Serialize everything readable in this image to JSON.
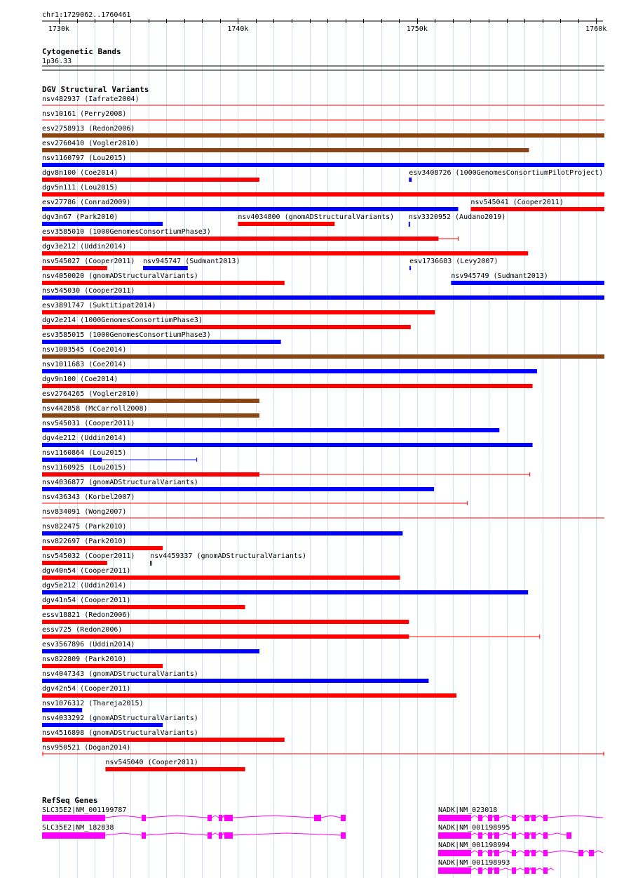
{
  "ruler": {
    "location": "chr1:1729062..1760461",
    "ticks": [
      "1730k",
      "1740k",
      "1750k",
      "1760k"
    ]
  },
  "cytoband": {
    "title": "Cytogenetic Bands",
    "band": "1p36.33"
  },
  "dgv": {
    "title": "DGV Structural Variants",
    "colors": {
      "red": "#ff0000",
      "blue": "#0000ff",
      "brown": "#8b4513"
    },
    "variants": [
      {
        "label": "nsv482937 (Iafrate2004)",
        "color": "red",
        "start": 1729062,
        "end": 1760461,
        "style": "line"
      },
      {
        "label": "nsv10161 (Perry2008)",
        "color": "red",
        "start": 1729062,
        "end": 1760461,
        "style": "line"
      },
      {
        "label": "esv2758913 (Redon2006)",
        "color": "brown",
        "start": 1729062,
        "end": 1760461,
        "style": "bar"
      },
      {
        "label": "esv2760410 (Vogler2010)",
        "color": "brown",
        "start": 1729062,
        "end": 1756250,
        "style": "bar"
      },
      {
        "label": "nsv1160797 (Lou2015)",
        "color": "blue",
        "start": 1729062,
        "end": 1760461,
        "style": "bar"
      },
      {
        "label": "dgv8n100 (Coe2014)",
        "color": "red",
        "start": 1729062,
        "end": 1741200,
        "style": "bar"
      },
      {
        "label": "esv3408726 (1000GenomesConsortiumPilotProject)",
        "color": "blue",
        "start": 1749550,
        "end": 1749700,
        "style": "bar"
      },
      {
        "label": "dgv5n111 (Lou2015)",
        "color": "red",
        "start": 1729062,
        "end": 1760461,
        "style": "bar"
      },
      {
        "label": "esv27786 (Conrad2009)",
        "color": "blue",
        "start": 1729062,
        "end": 1752300,
        "style": "bar"
      },
      {
        "label": "nsv545041 (Cooper2011)",
        "color": "red",
        "start": 1753000,
        "end": 1760461,
        "style": "bar"
      },
      {
        "label": "dgv3n67 (Park2010)",
        "color": "blue",
        "start": 1729062,
        "end": 1735800,
        "style": "bar"
      },
      {
        "label": "nsv4034800 (gnomADStructuralVariants)",
        "color": "red",
        "start": 1740000,
        "end": 1745400,
        "style": "bar"
      },
      {
        "label": "nsv3320952 (Audano2019)",
        "color": "blue",
        "start": 1749530,
        "end": 1749580,
        "style": "tick"
      },
      {
        "label": "esv3585010 (1000GenomesConsortiumPhase3)",
        "color": "red",
        "start": 1729062,
        "end": 1751200,
        "end2": 1752300,
        "style": "bar"
      },
      {
        "label": "dgv3e212 (Uddin2014)",
        "color": "red",
        "start": 1729062,
        "end": 1756200,
        "style": "bar"
      },
      {
        "label": "nsv545027 (Cooper2011)",
        "color": "red",
        "start": 1729062,
        "end": 1732700,
        "style": "bar"
      },
      {
        "label": "nsv945747 (Sudmant2013)",
        "color": "blue",
        "start": 1734700,
        "end": 1737200,
        "style": "bar"
      },
      {
        "label": "esv1736683 (Levy2007)",
        "color": "blue",
        "start": 1749580,
        "end": 1749650,
        "style": "bar"
      },
      {
        "label": "nsv4050020 (gnomADStructuralVariants)",
        "color": "red",
        "start": 1729062,
        "end": 1742600,
        "style": "bar"
      },
      {
        "label": "nsv945749 (Sudmant2013)",
        "color": "blue",
        "start": 1751900,
        "end": 1760461,
        "style": "bar"
      },
      {
        "label": "nsv545030 (Cooper2011)",
        "color": "blue",
        "start": 1729062,
        "end": 1760461,
        "style": "bar"
      },
      {
        "label": "esv3891747 (Suktitipat2014)",
        "color": "red",
        "start": 1729062,
        "end": 1751000,
        "style": "bar"
      },
      {
        "label": "dgv2e214 (1000GenomesConsortiumPhase3)",
        "color": "red",
        "start": 1729062,
        "end": 1749650,
        "style": "bar"
      },
      {
        "label": "esv3585015 (1000GenomesConsortiumPhase3)",
        "color": "blue",
        "start": 1729062,
        "end": 1742400,
        "style": "bar"
      },
      {
        "label": "nsv1003545 (Coe2014)",
        "color": "brown",
        "start": 1729062,
        "end": 1760461,
        "style": "bar"
      },
      {
        "label": "nsv1011683 (Coe2014)",
        "color": "blue",
        "start": 1729062,
        "end": 1756700,
        "style": "bar"
      },
      {
        "label": "dgv9n100 (Coe2014)",
        "color": "red",
        "start": 1729062,
        "end": 1756450,
        "style": "bar"
      },
      {
        "label": "esv2764265 (Vogler2010)",
        "color": "brown",
        "start": 1729062,
        "end": 1741200,
        "style": "bar"
      },
      {
        "label": "nsv442858 (McCarroll2008)",
        "color": "brown",
        "start": 1729062,
        "end": 1741200,
        "style": "bar"
      },
      {
        "label": "nsv545031 (Cooper2011)",
        "color": "blue",
        "start": 1729062,
        "end": 1754600,
        "style": "bar"
      },
      {
        "label": "dgv4e212 (Uddin2014)",
        "color": "blue",
        "start": 1729062,
        "end": 1756450,
        "style": "bar"
      },
      {
        "label": "nsv1160864 (Lou2015)",
        "color": "blue",
        "start": 1729062,
        "end": 1732400,
        "end2": 1737700,
        "style": "bar"
      },
      {
        "label": "nsv1160925 (Lou2015)",
        "color": "red",
        "start": 1729062,
        "end": 1741200,
        "end2": 1756300,
        "style": "bar"
      },
      {
        "label": "nsv4036877 (gnomADStructuralVariants)",
        "color": "blue",
        "start": 1729062,
        "end": 1750950,
        "style": "bar"
      },
      {
        "label": "nsv436343 (Korbel2007)",
        "color": "red",
        "start": 1729062,
        "end": 1752800,
        "style": "line"
      },
      {
        "label": "nsv834091 (Wong2007)",
        "color": "red",
        "start": 1729062,
        "end": 1760461,
        "style": "line"
      },
      {
        "label": "nsv822475 (Park2010)",
        "color": "blue",
        "start": 1729062,
        "end": 1749200,
        "style": "bar"
      },
      {
        "label": "nsv822697 (Park2010)",
        "color": "red",
        "start": 1729062,
        "end": 1735800,
        "style": "bar"
      },
      {
        "label": "nsv545032 (Cooper2011)",
        "color": "red",
        "start": 1729062,
        "end": 1732700,
        "style": "bar"
      },
      {
        "label": "nsv4459337 (gnomADStructuralVariants)",
        "color": "black",
        "start": 1735100,
        "end": 1735150,
        "style": "tick"
      },
      {
        "label": "dgv40n54 (Cooper2011)",
        "color": "red",
        "start": 1729062,
        "end": 1749050,
        "style": "bar"
      },
      {
        "label": "dgv5e212 (Uddin2014)",
        "color": "blue",
        "start": 1729062,
        "end": 1756200,
        "style": "bar"
      },
      {
        "label": "dgv41n54 (Cooper2011)",
        "color": "red",
        "start": 1729062,
        "end": 1740400,
        "style": "bar"
      },
      {
        "label": "essv18821 (Redon2006)",
        "color": "red",
        "start": 1729062,
        "end": 1749550,
        "style": "bar"
      },
      {
        "label": "essv725 (Redon2006)",
        "color": "red",
        "start": 1729062,
        "end": 1749550,
        "end2": 1756850,
        "style": "bar"
      },
      {
        "label": "esv3567896 (Uddin2014)",
        "color": "blue",
        "start": 1729062,
        "end": 1741200,
        "style": "bar"
      },
      {
        "label": "nsv822809 (Park2010)",
        "color": "red",
        "start": 1729062,
        "end": 1735800,
        "style": "bar"
      },
      {
        "label": "nsv4047343 (gnomADStructuralVariants)",
        "color": "blue",
        "start": 1729062,
        "end": 1750650,
        "style": "bar"
      },
      {
        "label": "dgv42n54 (Cooper2011)",
        "color": "red",
        "start": 1729062,
        "end": 1752200,
        "style": "bar"
      },
      {
        "label": "nsv1076312 (Thareja2015)",
        "color": "blue",
        "start": 1729062,
        "end": 1731300,
        "style": "bar"
      },
      {
        "label": "nsv4033292 (gnomADStructuralVariants)",
        "color": "blue",
        "start": 1729062,
        "end": 1735800,
        "style": "bar"
      },
      {
        "label": "nsv4516898 (gnomADStructuralVariants)",
        "color": "red",
        "start": 1729062,
        "end": 1742600,
        "style": "bar"
      },
      {
        "label": "nsv950521 (Dogan2014)",
        "color": "red",
        "start": 1729062,
        "end": 1760461,
        "style": "line"
      },
      {
        "label": "nsv545040 (Cooper2011)",
        "color": "red",
        "start": 1732600,
        "end": 1740400,
        "style": "bar"
      }
    ]
  },
  "refseq": {
    "title": "RefSeq Genes",
    "color": "#ff00ff",
    "genes": [
      {
        "label": "SLC35E2|NM_001199787"
      },
      {
        "label": "SLC35E2|NM_182838"
      },
      {
        "label": "NADK|NM_023018"
      },
      {
        "label": "NADK|NM_001198995"
      },
      {
        "label": "NADK|NM_001198994"
      },
      {
        "label": "NADK|NM_001198993"
      }
    ]
  }
}
